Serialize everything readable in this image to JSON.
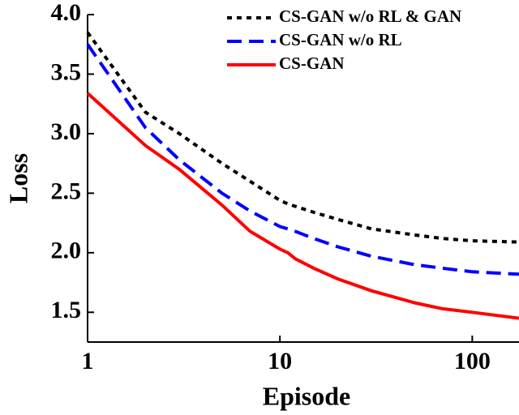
{
  "chart_data": {
    "type": "line",
    "x_label": "Episode",
    "y_label": "Loss",
    "x": [
      1,
      2,
      3,
      5,
      7,
      10,
      11,
      12,
      15,
      20,
      30,
      50,
      70,
      100,
      175
    ],
    "series": [
      {
        "name": "CS-GAN w/o RL & GAN",
        "color": "#000000",
        "dash": "dotted",
        "values": [
          3.85,
          3.18,
          3.0,
          2.75,
          2.6,
          2.44,
          2.41,
          2.39,
          2.34,
          2.28,
          2.2,
          2.15,
          2.12,
          2.1,
          2.09
        ]
      },
      {
        "name": "CS-GAN w/o RL",
        "color": "#0000ff",
        "dash": "dashed",
        "values": [
          3.75,
          3.05,
          2.78,
          2.5,
          2.35,
          2.22,
          2.2,
          2.18,
          2.12,
          2.05,
          1.97,
          1.9,
          1.87,
          1.84,
          1.82
        ]
      },
      {
        "name": "CS-GAN",
        "color": "#ff0000",
        "dash": "solid",
        "values": [
          3.34,
          2.9,
          2.7,
          2.4,
          2.18,
          2.03,
          2.0,
          1.95,
          1.87,
          1.78,
          1.68,
          1.58,
          1.53,
          1.5,
          1.45
        ]
      }
    ],
    "xscale": "log",
    "xlim": [
      1,
      175
    ],
    "xticks": [
      1,
      10,
      100
    ],
    "ylim": [
      1.25,
      4.0
    ],
    "yticks": [
      1.5,
      {
        "value": 2.0,
        "label": "2.0"
      },
      2.5,
      {
        "value": 3.0,
        "label": "3.0"
      },
      3.5,
      {
        "value": 4.0,
        "label": "4.0"
      }
    ],
    "grid": false,
    "legend": "upper right"
  }
}
